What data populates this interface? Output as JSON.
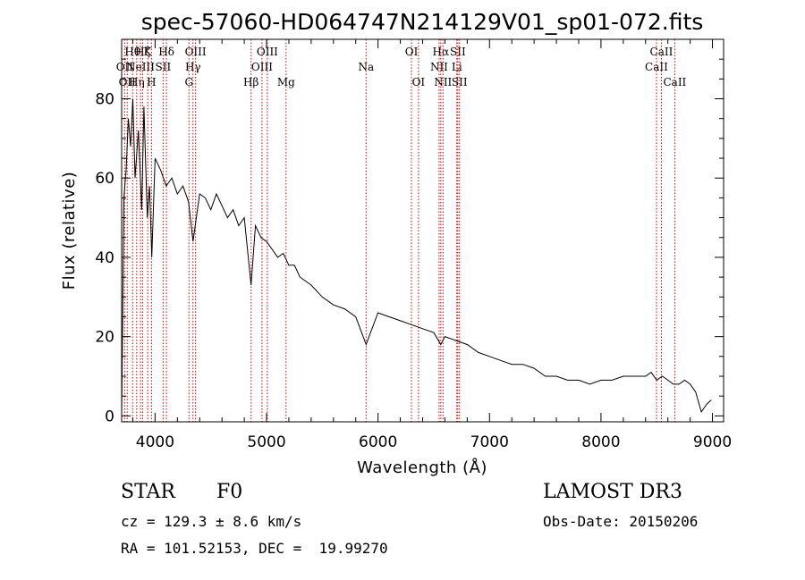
{
  "chart_data": {
    "type": "line",
    "title": "spec-57060-HD064747N214129V01_sp01-072.fits",
    "xlabel": "Wavelength (Å)",
    "ylabel": "Flux (relative)",
    "xlim": [
      3700,
      9100
    ],
    "ylim": [
      -1.5,
      95
    ],
    "xticks": [
      4000,
      5000,
      6000,
      7000,
      8000,
      9000
    ],
    "yticks": [
      0,
      20,
      40,
      60,
      80
    ],
    "line_color": "#000000",
    "marker_line_color": "#cc0000",
    "series": [
      {
        "name": "spectrum",
        "x": [
          3700,
          3720,
          3740,
          3760,
          3780,
          3800,
          3820,
          3850,
          3880,
          3900,
          3930,
          3950,
          3970,
          4000,
          4050,
          4100,
          4150,
          4200,
          4250,
          4300,
          4340,
          4400,
          4450,
          4500,
          4550,
          4600,
          4650,
          4700,
          4750,
          4800,
          4861,
          4900,
          4950,
          5000,
          5050,
          5100,
          5150,
          5200,
          5250,
          5300,
          5400,
          5500,
          5600,
          5700,
          5800,
          5893,
          6000,
          6100,
          6200,
          6300,
          6400,
          6500,
          6563,
          6600,
          6700,
          6800,
          6900,
          7000,
          7100,
          7200,
          7300,
          7400,
          7500,
          7600,
          7700,
          7800,
          7900,
          8000,
          8100,
          8200,
          8300,
          8400,
          8450,
          8500,
          8550,
          8600,
          8650,
          8700,
          8750,
          8800,
          8850,
          8900,
          8950,
          8990
        ],
        "y": [
          0,
          55,
          62,
          75,
          68,
          80,
          60,
          72,
          52,
          78,
          50,
          58,
          40,
          65,
          62,
          58,
          60,
          56,
          58,
          54,
          44,
          56,
          55,
          52,
          56,
          53,
          50,
          52,
          48,
          50,
          33,
          48,
          45,
          44,
          42,
          40,
          41,
          38,
          38,
          35,
          33,
          30,
          28,
          27,
          25,
          18,
          26,
          25,
          24,
          23,
          22,
          21,
          18,
          20,
          19,
          18,
          16,
          15,
          14,
          13,
          13,
          12,
          10,
          10,
          9,
          9,
          8,
          9,
          9,
          10,
          10,
          10,
          11,
          9,
          10,
          9,
          8,
          8,
          9,
          8,
          6,
          1,
          3,
          4
        ]
      }
    ],
    "line_markers": [
      {
        "wavelength": 3727,
        "label": "OII",
        "row": 2
      },
      {
        "wavelength": 3750,
        "label": "OII",
        "row": 3
      },
      {
        "wavelength": 3798,
        "label": "Hθ",
        "row": 1
      },
      {
        "wavelength": 3835,
        "label": "Hη",
        "row": 3
      },
      {
        "wavelength": 3869,
        "label": "NeIII",
        "row": 2
      },
      {
        "wavelength": 3889,
        "label": "Hζ",
        "row": 1
      },
      {
        "wavelength": 3934,
        "label": "K",
        "row": 1
      },
      {
        "wavelength": 3968,
        "label": "H",
        "row": 3
      },
      {
        "wavelength": 4072,
        "label": "SII",
        "row": 2
      },
      {
        "wavelength": 4102,
        "label": "Hδ",
        "row": 1
      },
      {
        "wavelength": 4304,
        "label": "G",
        "row": 3
      },
      {
        "wavelength": 4340,
        "label": "Hγ",
        "row": 2
      },
      {
        "wavelength": 4363,
        "label": "OIII",
        "row": 1
      },
      {
        "wavelength": 4861,
        "label": "Hβ",
        "row": 3
      },
      {
        "wavelength": 4959,
        "label": "OIII",
        "row": 2
      },
      {
        "wavelength": 5007,
        "label": "OIII",
        "row": 1
      },
      {
        "wavelength": 5175,
        "label": "Mg",
        "row": 3
      },
      {
        "wavelength": 5893,
        "label": "Na",
        "row": 2
      },
      {
        "wavelength": 6300,
        "label": "OI",
        "row": 1
      },
      {
        "wavelength": 6363,
        "label": "OI",
        "row": 3
      },
      {
        "wavelength": 6548,
        "label": "NII",
        "row": 2
      },
      {
        "wavelength": 6563,
        "label": "Hα",
        "row": 1
      },
      {
        "wavelength": 6583,
        "label": "NII",
        "row": 3
      },
      {
        "wavelength": 6707,
        "label": "Li",
        "row": 2
      },
      {
        "wavelength": 6716,
        "label": "SII",
        "row": 1
      },
      {
        "wavelength": 6731,
        "label": "SII",
        "row": 3
      },
      {
        "wavelength": 8498,
        "label": "CaII",
        "row": 2
      },
      {
        "wavelength": 8542,
        "label": "CaII",
        "row": 1
      },
      {
        "wavelength": 8662,
        "label": "CaII",
        "row": 3
      }
    ]
  },
  "info": {
    "object_class": "STAR",
    "subclass": "F0",
    "survey": "LAMOST DR3",
    "redshift_line": "cz = 129.3 ± 8.6 km/s",
    "obs_date_line": "Obs-Date: 20150206",
    "coords_line": "RA = 101.52153, DEC =  19.99270"
  }
}
